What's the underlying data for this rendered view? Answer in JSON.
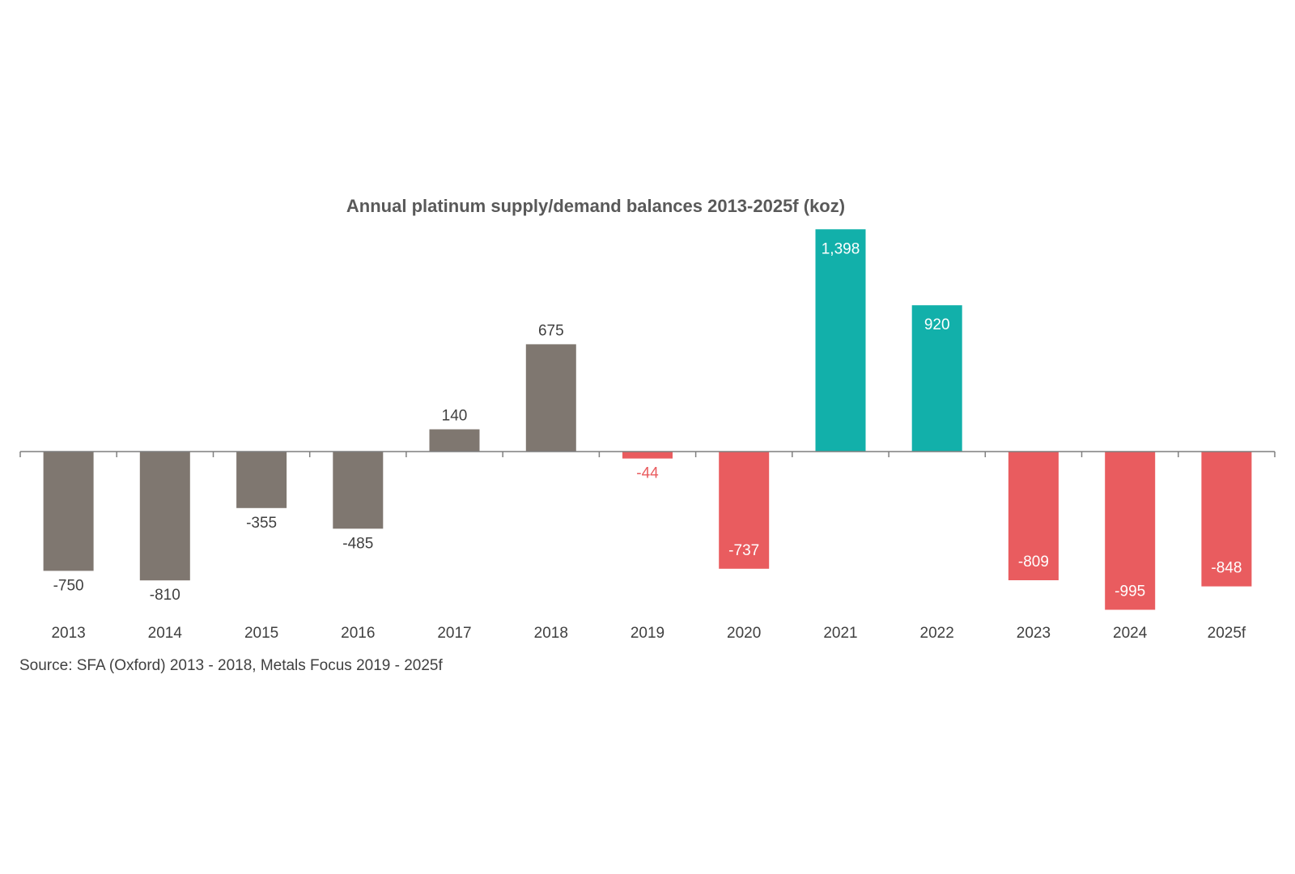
{
  "chart_data": {
    "type": "bar",
    "title": "Annual platinum supply/demand balances 2013-2025f (koz)",
    "categories": [
      "2013",
      "2014",
      "2015",
      "2016",
      "2017",
      "2018",
      "2019",
      "2020",
      "2021",
      "2022",
      "2023",
      "2024",
      "2025f"
    ],
    "values": [
      -750,
      -810,
      -355,
      -485,
      140,
      675,
      -44,
      -737,
      1398,
      920,
      -809,
      -995,
      -848
    ],
    "data_labels": [
      "-750",
      "-810",
      "-355",
      "-485",
      "140",
      "675",
      "-44",
      "-737",
      "1,398",
      "920",
      "-809",
      "-995",
      "-848"
    ],
    "bar_colors": [
      "#7f7770",
      "#7f7770",
      "#7f7770",
      "#7f7770",
      "#7f7770",
      "#7f7770",
      "#e95c5f",
      "#e95c5f",
      "#12b0aa",
      "#12b0aa",
      "#e95c5f",
      "#e95c5f",
      "#e95c5f"
    ],
    "label_colors": [
      "#404040",
      "#404040",
      "#404040",
      "#404040",
      "#404040",
      "#404040",
      "#e95c5f",
      "#ffffff",
      "#ffffff",
      "#ffffff",
      "#ffffff",
      "#ffffff",
      "#ffffff"
    ],
    "label_inside": [
      false,
      false,
      false,
      false,
      false,
      false,
      false,
      true,
      true,
      true,
      true,
      true,
      true
    ],
    "ylim": [
      -1000,
      1400
    ],
    "xlabel": "",
    "ylabel": "",
    "grid": false,
    "source": "Source: SFA (Oxford) 2013 - 2018, Metals Focus 2019 - 2025f"
  },
  "colors": {
    "axis": "#7f7f7f",
    "title": "#595959",
    "text": "#404040"
  }
}
